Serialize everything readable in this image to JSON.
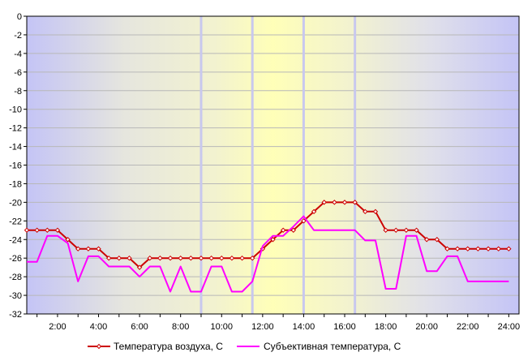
{
  "chart_data": {
    "type": "line",
    "title": "",
    "xlabel": "",
    "ylabel": "",
    "ylim": [
      -32,
      0
    ],
    "yticks": [
      0,
      -2,
      -4,
      -6,
      -8,
      -10,
      -12,
      -14,
      -16,
      -18,
      -20,
      -22,
      -24,
      -26,
      -28,
      -30,
      -32
    ],
    "ytick_labels": [
      "0",
      "-2",
      "-4",
      "-6",
      "-8",
      "-10",
      "-12",
      "-14",
      "-16",
      "-18",
      "-20",
      "-22",
      "-24",
      "-26",
      "-28",
      "-30",
      "-32"
    ],
    "xlim": [
      0.5,
      24.5
    ],
    "xticks": [
      2,
      4,
      6,
      8,
      10,
      12,
      14,
      16,
      18,
      20,
      22,
      24
    ],
    "xtick_labels": [
      "2:00",
      "4:00",
      "6:00",
      "8:00",
      "10:00",
      "12:00",
      "14:00",
      "16:00",
      "18:00",
      "20:00",
      "22:00",
      "24:00"
    ],
    "vertical_lines_x": [
      9,
      11.5,
      14,
      16.5
    ],
    "grid": "horizontal",
    "legend_placement": "bottom",
    "series": [
      {
        "name": "Температура воздуха, C",
        "color": "#cc0000",
        "marker": "diamond",
        "x": [
          0.5,
          1,
          1.5,
          2,
          2.5,
          3,
          3.5,
          4,
          4.5,
          5,
          5.5,
          6,
          6.5,
          7,
          7.5,
          8,
          8.5,
          9,
          9.5,
          10,
          10.5,
          11,
          11.5,
          12,
          12.5,
          13,
          13.5,
          14,
          14.5,
          15,
          15.5,
          16,
          16.5,
          17,
          17.5,
          18,
          18.5,
          19,
          19.5,
          20,
          20.5,
          21,
          21.5,
          22,
          22.5,
          23,
          23.5,
          24
        ],
        "values": [
          -23,
          -23,
          -23,
          -23,
          -24,
          -25,
          -25,
          -25,
          -26,
          -26,
          -26,
          -27,
          -26,
          -26,
          -26,
          -26,
          -26,
          -26,
          -26,
          -26,
          -26,
          -26,
          -26,
          -25,
          -24,
          -23,
          -23,
          -22,
          -21,
          -20,
          -20,
          -20,
          -20,
          -21,
          -21,
          -23,
          -23,
          -23,
          -23,
          -24,
          -24,
          -25,
          -25,
          -25,
          -25,
          -25,
          -25,
          -25
        ]
      },
      {
        "name": "Субъективная температура, C",
        "color": "#ff00ff",
        "marker": "none",
        "x": [
          0.5,
          1,
          1.5,
          2,
          2.5,
          3,
          3.5,
          4,
          4.5,
          5,
          5.5,
          6,
          6.5,
          7,
          7.5,
          8,
          8.5,
          9,
          9.5,
          10,
          10.5,
          11,
          11.5,
          12,
          12.5,
          13,
          13.5,
          14,
          14.5,
          15,
          15.5,
          16,
          16.5,
          17,
          17.5,
          18,
          18.5,
          19,
          19.5,
          20,
          20.5,
          21,
          21.5,
          22,
          22.5,
          23,
          23.5,
          24
        ],
        "values": [
          -26.4,
          -26.4,
          -23.6,
          -23.6,
          -24.4,
          -28.5,
          -25.8,
          -25.8,
          -26.9,
          -26.9,
          -26.9,
          -28,
          -26.9,
          -26.9,
          -29.6,
          -26.9,
          -29.6,
          -29.6,
          -26.9,
          -26.9,
          -29.6,
          -29.6,
          -28.5,
          -24.7,
          -23.6,
          -23.6,
          -22.6,
          -21.5,
          -23,
          -23,
          -23,
          -23,
          -23,
          -24.1,
          -24.1,
          -29.3,
          -29.3,
          -23.6,
          -23.6,
          -27.4,
          -27.4,
          -25.8,
          -25.8,
          -28.5,
          -28.5,
          -28.5,
          -28.5,
          -28.5
        ]
      }
    ]
  }
}
